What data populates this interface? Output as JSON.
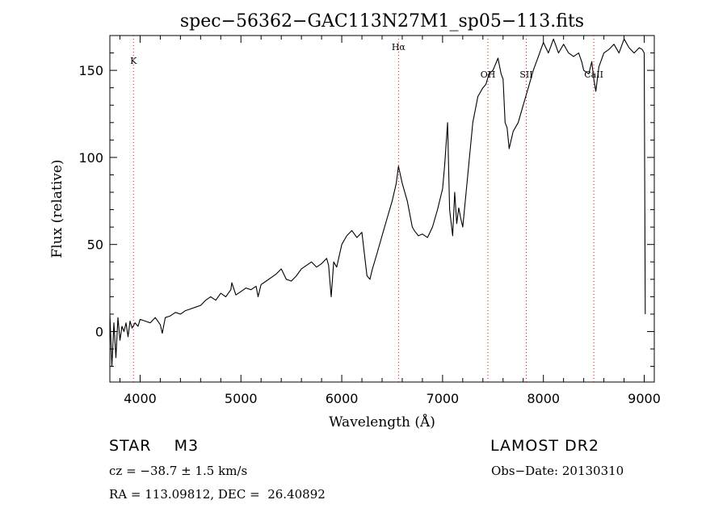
{
  "chart_data": {
    "type": "line",
    "title": "spec−56362−GAC113N27M1_sp05−113.fits",
    "xlabel": "Wavelength (Å)",
    "ylabel": "Flux (relative)",
    "xlim": [
      3700,
      9100
    ],
    "ylim": [
      -29,
      170
    ],
    "xticks": [
      4000,
      5000,
      6000,
      7000,
      8000,
      9000
    ],
    "yticks": [
      0,
      50,
      100,
      150
    ],
    "grid": false,
    "line_color": "#000000",
    "marker_color": "#ff0000",
    "line_markers": [
      {
        "label": "K",
        "x": 3934
      },
      {
        "label": "Hα",
        "x": 6563
      },
      {
        "label": "OH",
        "x": 7450
      },
      {
        "label": "SII",
        "x": 7830
      },
      {
        "label": "CaII",
        "x": 8500
      }
    ],
    "series": [
      {
        "x": [
          3700,
          3720,
          3740,
          3760,
          3780,
          3800,
          3820,
          3840,
          3860,
          3880,
          3900,
          3920,
          3950,
          3980,
          4000,
          4050,
          4100,
          4150,
          4200,
          4220,
          4250,
          4300,
          4350,
          4400,
          4450,
          4500,
          4550,
          4600,
          4650,
          4700,
          4750,
          4800,
          4850,
          4900,
          4910,
          4950,
          5000,
          5050,
          5100,
          5150,
          5170,
          5200,
          5250,
          5300,
          5350,
          5400,
          5450,
          5500,
          5550,
          5600,
          5650,
          5700,
          5750,
          5800,
          5850,
          5870,
          5895,
          5920,
          5950,
          6000,
          6050,
          6100,
          6150,
          6200,
          6250,
          6280,
          6300,
          6350,
          6400,
          6450,
          6500,
          6540,
          6563,
          6600,
          6650,
          6700,
          6720,
          6760,
          6800,
          6850,
          6900,
          6950,
          7000,
          7020,
          7050,
          7070,
          7100,
          7120,
          7140,
          7160,
          7180,
          7200,
          7250,
          7300,
          7350,
          7400,
          7430,
          7460,
          7500,
          7550,
          7580,
          7600,
          7620,
          7640,
          7660,
          7680,
          7700,
          7750,
          7800,
          7850,
          7900,
          7950,
          8000,
          8050,
          8100,
          8150,
          8200,
          8250,
          8300,
          8350,
          8380,
          8400,
          8450,
          8480,
          8500,
          8520,
          8550,
          8600,
          8650,
          8700,
          8750,
          8800,
          8850,
          8900,
          8950,
          8980,
          9000,
          9010
        ],
        "y": [
          10,
          -20,
          5,
          -15,
          8,
          -5,
          3,
          0,
          5,
          -3,
          6,
          2,
          5,
          3,
          7,
          6,
          5,
          8,
          4,
          -1,
          8,
          9,
          11,
          10,
          12,
          13,
          14,
          15,
          18,
          20,
          18,
          22,
          20,
          24,
          28,
          21,
          23,
          25,
          24,
          26,
          20,
          27,
          29,
          31,
          33,
          36,
          30,
          29,
          32,
          36,
          38,
          40,
          37,
          39,
          42,
          38,
          20,
          40,
          37,
          50,
          55,
          58,
          54,
          57,
          32,
          30,
          35,
          45,
          55,
          65,
          75,
          85,
          95,
          85,
          75,
          60,
          58,
          55,
          56,
          54,
          60,
          70,
          82,
          95,
          120,
          70,
          55,
          80,
          62,
          71,
          65,
          60,
          90,
          120,
          135,
          140,
          142,
          148,
          150,
          157,
          148,
          145,
          120,
          117,
          105,
          110,
          115,
          120,
          130,
          140,
          150,
          158,
          166,
          160,
          168,
          160,
          165,
          160,
          158,
          160,
          155,
          150,
          148,
          155,
          145,
          138,
          152,
          160,
          162,
          165,
          160,
          168,
          163,
          160,
          163,
          162,
          160,
          10
        ]
      }
    ]
  },
  "info": {
    "object_type": "STAR",
    "subclass": "M3",
    "survey": "LAMOST DR2",
    "redshift": "cz = −38.7 ± 1.5 km/s",
    "obs_date": "Obs−Date: 20130310",
    "coords": "RA = 113.09812, DEC =  26.40892"
  }
}
